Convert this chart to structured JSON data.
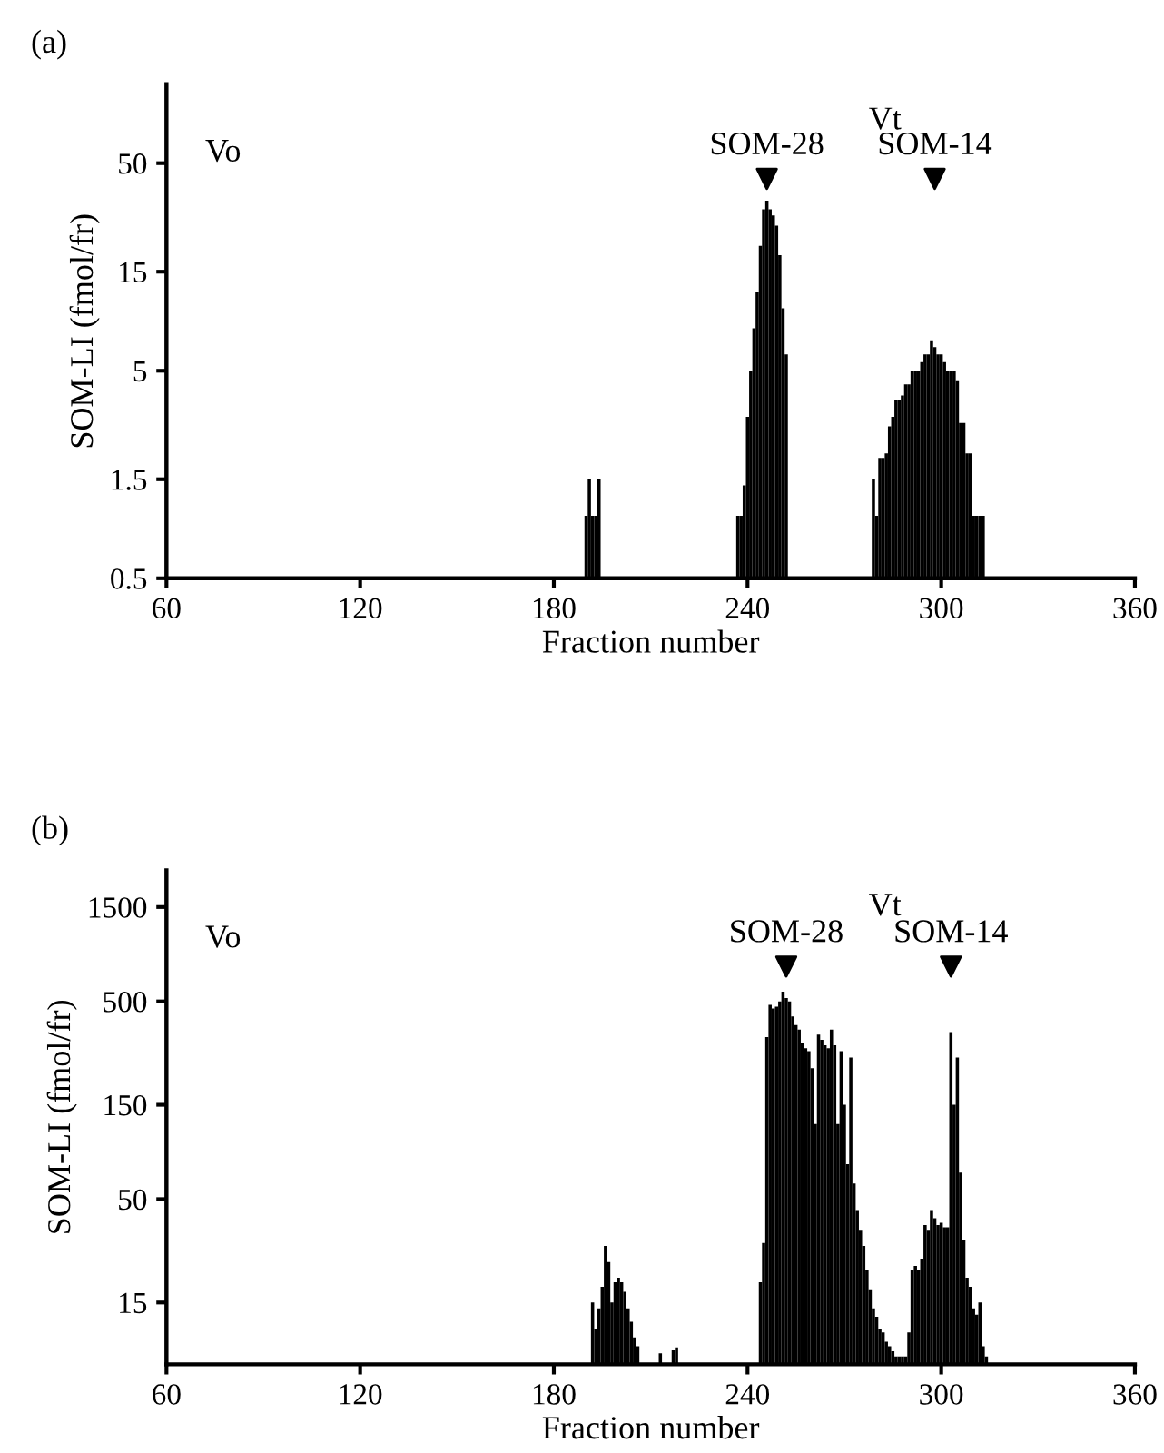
{
  "chart_data": [
    {
      "type": "bar",
      "title": "(a)",
      "xlabel": "Fraction number",
      "ylabel": "SOM-LI (fmol/fr)",
      "log": "y",
      "grid": false,
      "xlim": [
        60,
        360
      ],
      "xticks": [
        60,
        120,
        180,
        240,
        300,
        360
      ],
      "ylim": [
        0.5,
        120
      ],
      "yticks": [
        0.5,
        1.5,
        5,
        15,
        50
      ],
      "annotations": [
        "Vo",
        "Vt",
        {
          "text": "SOM-28",
          "x": 246,
          "y": 42
        },
        {
          "text": "SOM-14",
          "x": 298,
          "y": 42
        }
      ],
      "series": [
        {
          "color": "#000000",
          "x": [
            190,
            191,
            192,
            193,
            194,
            237,
            238,
            239,
            240,
            241,
            242,
            243,
            244,
            245,
            246,
            247,
            248,
            249,
            250,
            251,
            252,
            279,
            280,
            281,
            282,
            283,
            284,
            285,
            286,
            287,
            288,
            289,
            290,
            291,
            292,
            293,
            294,
            295,
            296,
            297,
            298,
            299,
            300,
            301,
            302,
            303,
            304,
            305,
            306,
            307,
            308,
            309,
            310,
            311,
            312,
            313
          ],
          "values": [
            1.0,
            1.5,
            1.0,
            1.0,
            1.5,
            1.0,
            1.0,
            1.4,
            3,
            5,
            8,
            12,
            20,
            30,
            33,
            30,
            28,
            25,
            18,
            10,
            6,
            1.5,
            1.0,
            1.9,
            1.9,
            2.0,
            2.7,
            3.0,
            3.6,
            3.6,
            3.8,
            4.3,
            4.3,
            5.0,
            5.0,
            5.0,
            5.5,
            6,
            6,
            7,
            6.5,
            6,
            6,
            5.5,
            5,
            5,
            5,
            4.5,
            2.8,
            2.8,
            2.0,
            2.0,
            1.0,
            1.0,
            1.0,
            1.0
          ]
        }
      ]
    },
    {
      "type": "bar",
      "title": "(b)",
      "xlabel": "Fraction number",
      "ylabel": "SOM-LI (fmol/fr)",
      "log": "y",
      "grid": false,
      "xlim": [
        60,
        360
      ],
      "xticks": [
        60,
        120,
        180,
        240,
        300,
        360
      ],
      "ylim": [
        7.3,
        2300
      ],
      "yticks": [
        15,
        50,
        150,
        500,
        1500
      ],
      "annotations": [
        "Vo",
        "Vt",
        {
          "text": "SOM-28",
          "x": 252,
          "y": 750
        },
        {
          "text": "SOM-14",
          "x": 303,
          "y": 750
        }
      ],
      "series": [
        {
          "color": "#000000",
          "x": [
            192,
            193,
            194,
            195,
            196,
            197,
            198,
            199,
            200,
            201,
            202,
            203,
            204,
            205,
            206,
            213,
            217,
            218,
            244,
            245,
            246,
            247,
            248,
            249,
            250,
            251,
            252,
            253,
            254,
            255,
            256,
            257,
            258,
            259,
            260,
            261,
            262,
            263,
            264,
            265,
            266,
            267,
            268,
            269,
            270,
            271,
            272,
            273,
            274,
            275,
            276,
            277,
            278,
            279,
            280,
            281,
            282,
            283,
            284,
            285,
            286,
            287,
            288,
            289,
            290,
            291,
            292,
            293,
            294,
            295,
            296,
            297,
            298,
            299,
            300,
            301,
            302,
            303,
            304,
            305,
            306,
            307,
            308,
            309,
            310,
            311,
            312,
            313,
            314
          ],
          "values": [
            15,
            11,
            14,
            18,
            29,
            24,
            15,
            19,
            20,
            19,
            17,
            14,
            12,
            10,
            9,
            8.3,
            8.6,
            8.9,
            19,
            30,
            330,
            480,
            460,
            470,
            500,
            560,
            520,
            500,
            420,
            380,
            360,
            310,
            290,
            280,
            230,
            120,
            340,
            320,
            300,
            290,
            360,
            300,
            120,
            280,
            150,
            75,
            260,
            60,
            44,
            35,
            29,
            22,
            17.5,
            14,
            12.7,
            11,
            10.6,
            9.5,
            9,
            8.5,
            8,
            8,
            8,
            8,
            10.6,
            22,
            23,
            22,
            25,
            37,
            35,
            44,
            40,
            37,
            38,
            36,
            36,
            350,
            150,
            260,
            68,
            31,
            20,
            18,
            14,
            13,
            15,
            9,
            8
          ]
        }
      ]
    }
  ]
}
